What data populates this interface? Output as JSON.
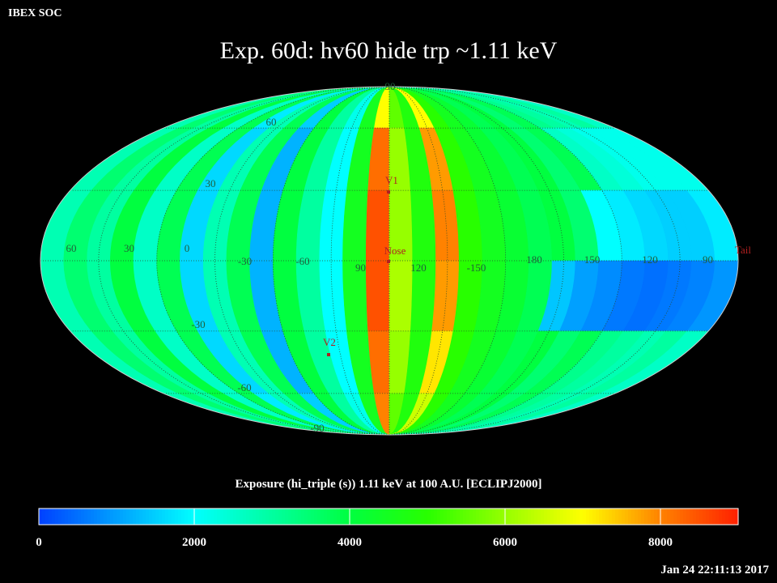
{
  "header": {
    "source": "IBEX SOC",
    "title": "Exp.   60d: hv60 hide trp ~1.11 keV",
    "timestamp": "Jan 24 22:11:13 2017"
  },
  "map": {
    "cells": [
      [
        2800,
        3500,
        3000,
        4000,
        2600,
        3800,
        1800,
        2800,
        3800,
        1500,
        4000,
        3000,
        2200,
        4500,
        7000,
        5500,
        4800,
        7000,
        5000,
        4500,
        4200,
        3800,
        4000,
        3500,
        3800,
        3200,
        3000,
        2800,
        3000,
        2600
      ],
      [
        2800,
        3500,
        3000,
        4000,
        2600,
        3800,
        1600,
        2800,
        3800,
        1200,
        4000,
        3000,
        2000,
        4500,
        8200,
        6000,
        4800,
        7800,
        5000,
        4500,
        4200,
        3800,
        4000,
        3500,
        3800,
        2600,
        2400,
        2200,
        2200,
        2200
      ],
      [
        2800,
        3500,
        3000,
        4000,
        2600,
        3800,
        1600,
        2800,
        3800,
        1200,
        4000,
        3000,
        2000,
        4500,
        8500,
        6000,
        4800,
        8000,
        5000,
        4500,
        4200,
        3800,
        4000,
        3500,
        2000,
        1800,
        1600,
        1500,
        1500,
        1800
      ],
      [
        2800,
        3500,
        3000,
        4000,
        2600,
        3800,
        1600,
        2800,
        3800,
        1200,
        4000,
        3000,
        2000,
        4500,
        8500,
        6200,
        4800,
        7800,
        5000,
        4500,
        4200,
        3800,
        1400,
        1000,
        800,
        600,
        500,
        600,
        700,
        900
      ],
      [
        2800,
        3500,
        3000,
        4000,
        2600,
        3800,
        1600,
        2800,
        3800,
        1200,
        4000,
        3000,
        2000,
        4500,
        8200,
        6000,
        4800,
        7200,
        5000,
        4500,
        4200,
        3800,
        4000,
        3500,
        3800,
        3200,
        3000,
        2800,
        3000,
        2600
      ],
      [
        2800,
        3500,
        3000,
        4000,
        2600,
        3800,
        1800,
        2800,
        3800,
        1500,
        4000,
        3000,
        2200,
        4500,
        8000,
        5500,
        4800,
        6500,
        5000,
        4500,
        4200,
        3800,
        4000,
        3500,
        3800,
        3200,
        3000,
        2800,
        3000,
        2600
      ]
    ],
    "lon_labels": [
      "60",
      "30",
      "0",
      "-30",
      "-60",
      "90",
      "120",
      "-150",
      "180",
      "150",
      "120",
      "90"
    ],
    "lat_labels": [
      "90",
      "60",
      "30",
      "-30",
      "-60",
      "-90"
    ],
    "markers": [
      "V1",
      "Nose",
      "V2",
      "Tail"
    ]
  },
  "colorbar": {
    "label": "Exposure (hi_triple (s))  1.11 keV at 100 A.U. [ECLIPJ2000]",
    "lim": [
      0,
      9000
    ],
    "ticks": [
      0,
      2000,
      4000,
      6000,
      8000
    ]
  }
}
